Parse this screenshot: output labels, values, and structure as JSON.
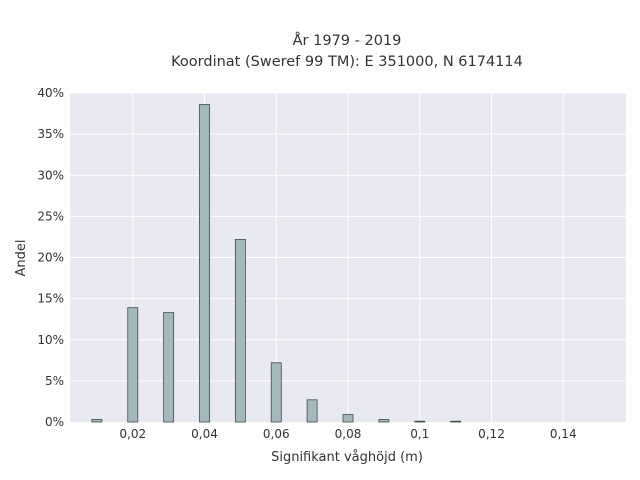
{
  "chart_data": {
    "type": "bar",
    "title_lines": [
      "År 1979 - 2019",
      "Koordinat (Sweref 99 TM): E 351000, N 6174114"
    ],
    "xlabel": "Signifikant våghöjd (m)",
    "ylabel": "Andel",
    "xlim": [
      0.0025,
      0.1575
    ],
    "ylim": [
      0,
      0.4
    ],
    "x_ticks": [
      {
        "value": 0.02,
        "label": "0,02"
      },
      {
        "value": 0.04,
        "label": "0,04"
      },
      {
        "value": 0.06,
        "label": "0,06"
      },
      {
        "value": 0.08,
        "label": "0,08"
      },
      {
        "value": 0.1,
        "label": "0,1"
      },
      {
        "value": 0.12,
        "label": "0,12"
      },
      {
        "value": 0.14,
        "label": "0,14"
      }
    ],
    "y_ticks": [
      {
        "value": 0.0,
        "label": "0%"
      },
      {
        "value": 0.05,
        "label": "5%"
      },
      {
        "value": 0.1,
        "label": "10%"
      },
      {
        "value": 0.15,
        "label": "15%"
      },
      {
        "value": 0.2,
        "label": "20%"
      },
      {
        "value": 0.25,
        "label": "25%"
      },
      {
        "value": 0.3,
        "label": "30%"
      },
      {
        "value": 0.35,
        "label": "35%"
      },
      {
        "value": 0.4,
        "label": "40%"
      }
    ],
    "bin_width": 0.0028,
    "x": [
      0.01,
      0.02,
      0.03,
      0.04,
      0.05,
      0.06,
      0.07,
      0.08,
      0.09,
      0.1,
      0.11
    ],
    "values": [
      0.003,
      0.139,
      0.133,
      0.386,
      0.222,
      0.072,
      0.027,
      0.009,
      0.003,
      0.001,
      0.001
    ],
    "grid": true,
    "bar_color": "#a3b9bb",
    "bar_edge_color": "#3f4a4a",
    "plot_background": "#e9e9f1",
    "grid_color": "#ffffff"
  }
}
